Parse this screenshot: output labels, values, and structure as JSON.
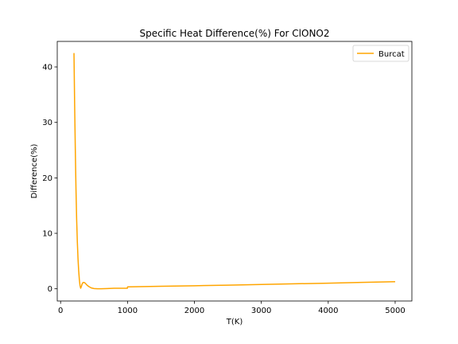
{
  "chart_data": {
    "type": "line",
    "title": "Specific Heat Difference(%) For ClONO2",
    "xlabel": "T(K)",
    "ylabel": "Difference(%)",
    "xlim": [
      -50,
      5250
    ],
    "ylim": [
      -2.2,
      44.6
    ],
    "x_ticks": [
      0,
      1000,
      2000,
      3000,
      4000,
      5000
    ],
    "y_ticks": [
      0,
      10,
      20,
      30,
      40
    ],
    "grid": false,
    "legend": {
      "placement": "upper right"
    },
    "series": [
      {
        "name": "Burcat",
        "color": "#ffa500",
        "x": [
          200,
          210,
          220,
          230,
          240,
          250,
          260,
          270,
          280,
          290,
          300,
          310,
          320,
          330,
          340,
          360,
          380,
          400,
          430,
          460,
          500,
          550,
          600,
          700,
          800,
          900,
          999,
          1000,
          1001,
          1500,
          2000,
          2500,
          3000,
          3500,
          4000,
          4500,
          5000
        ],
        "y": [
          42.5,
          33.0,
          25.0,
          18.0,
          12.5,
          8.5,
          5.5,
          3.3,
          1.7,
          0.6,
          0.1,
          0.4,
          0.8,
          1.05,
          1.15,
          1.1,
          0.85,
          0.6,
          0.35,
          0.15,
          0.05,
          0.0,
          0.0,
          0.05,
          0.1,
          0.1,
          0.1,
          0.3,
          0.35,
          0.45,
          0.55,
          0.65,
          0.78,
          0.9,
          1.02,
          1.15,
          1.28
        ]
      }
    ]
  }
}
